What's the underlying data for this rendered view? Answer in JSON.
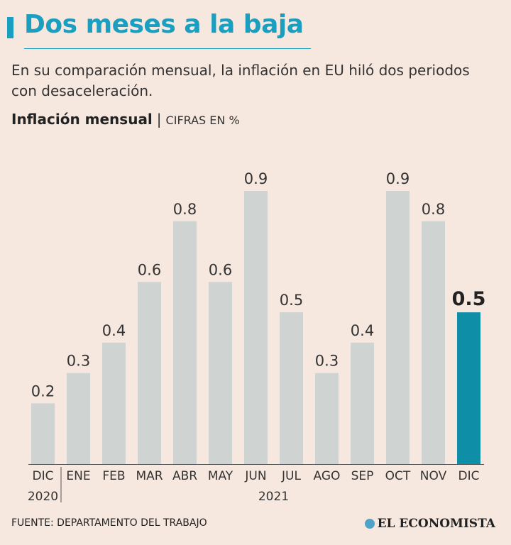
{
  "header": {
    "title": "Dos meses a la baja",
    "subtitle": "En su comparación mensual, la inflación en EU hiló dos periodos con desaceleración."
  },
  "chart_header": {
    "label": "Inflación mensual",
    "separator": "|",
    "units": "CIFRAS EN %"
  },
  "chart_data": {
    "type": "bar",
    "title": "Inflación mensual",
    "ylabel": "CIFRAS EN %",
    "categories": [
      "DIC",
      "ENE",
      "FEB",
      "MAR",
      "ABR",
      "MAY",
      "JUN",
      "JUL",
      "AGO",
      "SEP",
      "OCT",
      "NOV",
      "DIC"
    ],
    "years": [
      {
        "label": "2020",
        "start": 0,
        "end": 0
      },
      {
        "label": "2021",
        "start": 1,
        "end": 12
      }
    ],
    "values": [
      0.2,
      0.3,
      0.4,
      0.6,
      0.8,
      0.6,
      0.9,
      0.5,
      0.3,
      0.4,
      0.9,
      0.8,
      0.5
    ],
    "labels": [
      "0.2",
      "0.3",
      "0.4",
      "0.6",
      "0.8",
      "0.6",
      "0.9",
      "0.5",
      "0.3",
      "0.4",
      "0.9",
      "0.8",
      "0.5"
    ],
    "highlight_index": 12,
    "ylim": [
      0,
      0.9
    ],
    "colors": {
      "bar": "#cfd3d2",
      "highlight": "#0e8ea7",
      "axis": "#555555"
    }
  },
  "footer": {
    "source": "FUENTE: DEPARTAMENTO DEL TRABAJO",
    "logo": "EL ECONOMISTA"
  }
}
